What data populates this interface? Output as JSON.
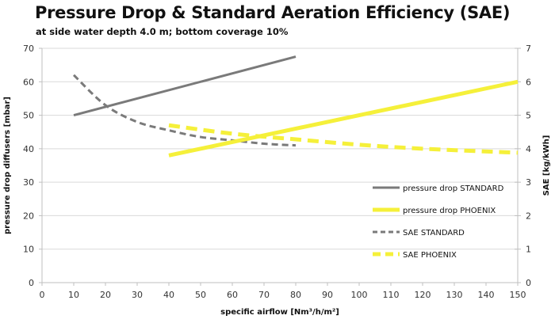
{
  "chart_data": {
    "type": "line",
    "title": "Pressure Drop & Standard Aeration Efficiency (SAE)",
    "subtitle": "at side water depth 4.0 m; bottom coverage 10%",
    "xlabel": "specific airflow [Nm³/h/m²]",
    "ylabel": "pressure drop diffusers [mbar]",
    "y2label": "SAE [kg/kWh]",
    "xlim": [
      0,
      150
    ],
    "ylim": [
      0,
      70
    ],
    "y2lim": [
      0,
      7
    ],
    "x_ticks": [
      "0",
      "10",
      "20",
      "30",
      "40",
      "50",
      "60",
      "70",
      "80",
      "90",
      "100",
      "110",
      "120",
      "130",
      "140",
      "150"
    ],
    "y_ticks": [
      "0",
      "10",
      "20",
      "30",
      "40",
      "50",
      "60",
      "70"
    ],
    "y2_ticks": [
      "0",
      "1",
      "2",
      "3",
      "4",
      "5",
      "6",
      "7"
    ],
    "grid": "horizontal",
    "legend_position": "lower-right",
    "series": [
      {
        "name": "pressure drop STANDARD",
        "axis": "left",
        "style": "solid",
        "color": "#7a7a7a",
        "x": [
          10,
          80
        ],
        "y": [
          50,
          67.5
        ]
      },
      {
        "name": "pressure drop PHOENIX",
        "axis": "left",
        "style": "solid",
        "color": "#f5f03a",
        "x": [
          40,
          150
        ],
        "y": [
          38,
          60
        ]
      },
      {
        "name": "SAE STANDARD",
        "axis": "right",
        "style": "dashed",
        "color": "#7a7a7a",
        "x": [
          10,
          20,
          30,
          40,
          50,
          60,
          70,
          80
        ],
        "y": [
          6.2,
          5.3,
          4.8,
          4.55,
          4.35,
          4.25,
          4.15,
          4.1
        ]
      },
      {
        "name": "SAE PHOENIX",
        "axis": "right",
        "style": "dashed",
        "color": "#f5f03a",
        "x": [
          40,
          60,
          80,
          100,
          120,
          150
        ],
        "y": [
          4.7,
          4.45,
          4.28,
          4.12,
          4.0,
          3.88
        ]
      }
    ]
  }
}
